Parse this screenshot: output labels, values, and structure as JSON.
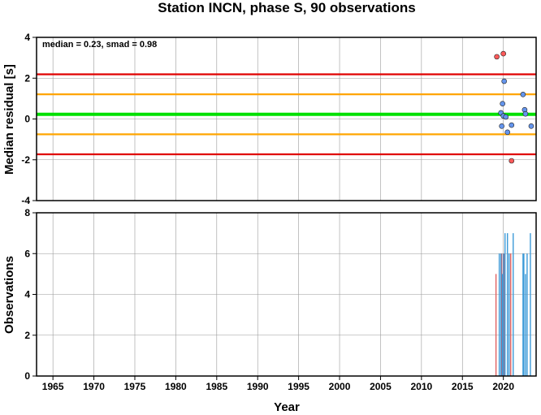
{
  "chart_data": [
    {
      "type": "scatter",
      "title": "Station INCN, phase S, 90 observations",
      "annotation": "median = 0.23, smad = 0.98",
      "xlabel": "",
      "ylabel": "Median residual [s]",
      "xlim": [
        1963,
        2024
      ],
      "ylim": [
        -4,
        4
      ],
      "yticks": [
        -4,
        -2,
        0,
        2,
        4
      ],
      "grid": true,
      "reference_lines": [
        {
          "value": 0.23,
          "color": "#00e000"
        },
        {
          "value": 1.21,
          "color": "#ffa500"
        },
        {
          "value": -0.75,
          "color": "#ffa500"
        },
        {
          "value": 2.19,
          "color": "#e00000"
        },
        {
          "value": -1.73,
          "color": "#e00000"
        }
      ],
      "series": [
        {
          "color": "#6495ed",
          "points": [
            {
              "x": 2019.7,
              "y": 0.3
            },
            {
              "x": 2019.8,
              "y": -0.35
            },
            {
              "x": 2019.9,
              "y": 0.75
            },
            {
              "x": 2020.0,
              "y": 0.15
            },
            {
              "x": 2020.1,
              "y": 1.85
            },
            {
              "x": 2020.3,
              "y": 0.1
            },
            {
              "x": 2020.5,
              "y": -0.65
            },
            {
              "x": 2021.0,
              "y": -0.3
            },
            {
              "x": 2022.4,
              "y": 1.2
            },
            {
              "x": 2022.6,
              "y": 0.45
            },
            {
              "x": 2022.7,
              "y": 0.25
            },
            {
              "x": 2023.4,
              "y": -0.35
            }
          ]
        },
        {
          "color": "#ff5a5a",
          "points": [
            {
              "x": 2019.2,
              "y": 3.05
            },
            {
              "x": 2020.0,
              "y": 3.2
            },
            {
              "x": 2021.0,
              "y": -2.05
            }
          ]
        }
      ]
    },
    {
      "type": "bar",
      "xlabel": "Year",
      "ylabel": "Observations",
      "xlim": [
        1963,
        2024
      ],
      "ylim": [
        0,
        8
      ],
      "xticks": [
        1965,
        1970,
        1975,
        1980,
        1985,
        1990,
        1995,
        2000,
        2005,
        2010,
        2015,
        2020
      ],
      "yticks": [
        0,
        2,
        4,
        6,
        8
      ],
      "grid": true,
      "series": [
        {
          "color": "#e06060",
          "points": [
            {
              "x": 2019.1,
              "y": 5
            },
            {
              "x": 2019.8,
              "y": 6
            },
            {
              "x": 2020.1,
              "y": 6
            },
            {
              "x": 2020.9,
              "y": 6
            }
          ]
        },
        {
          "color": "#3c9ad8",
          "points": [
            {
              "x": 2019.5,
              "y": 6
            },
            {
              "x": 2019.7,
              "y": 6
            },
            {
              "x": 2019.9,
              "y": 5
            },
            {
              "x": 2020.0,
              "y": 6
            },
            {
              "x": 2020.2,
              "y": 7
            },
            {
              "x": 2020.5,
              "y": 7
            },
            {
              "x": 2020.7,
              "y": 6
            },
            {
              "x": 2021.2,
              "y": 7
            },
            {
              "x": 2022.4,
              "y": 6
            },
            {
              "x": 2022.5,
              "y": 6
            },
            {
              "x": 2022.7,
              "y": 5
            },
            {
              "x": 2022.9,
              "y": 6
            },
            {
              "x": 2023.3,
              "y": 7
            }
          ]
        }
      ]
    }
  ]
}
